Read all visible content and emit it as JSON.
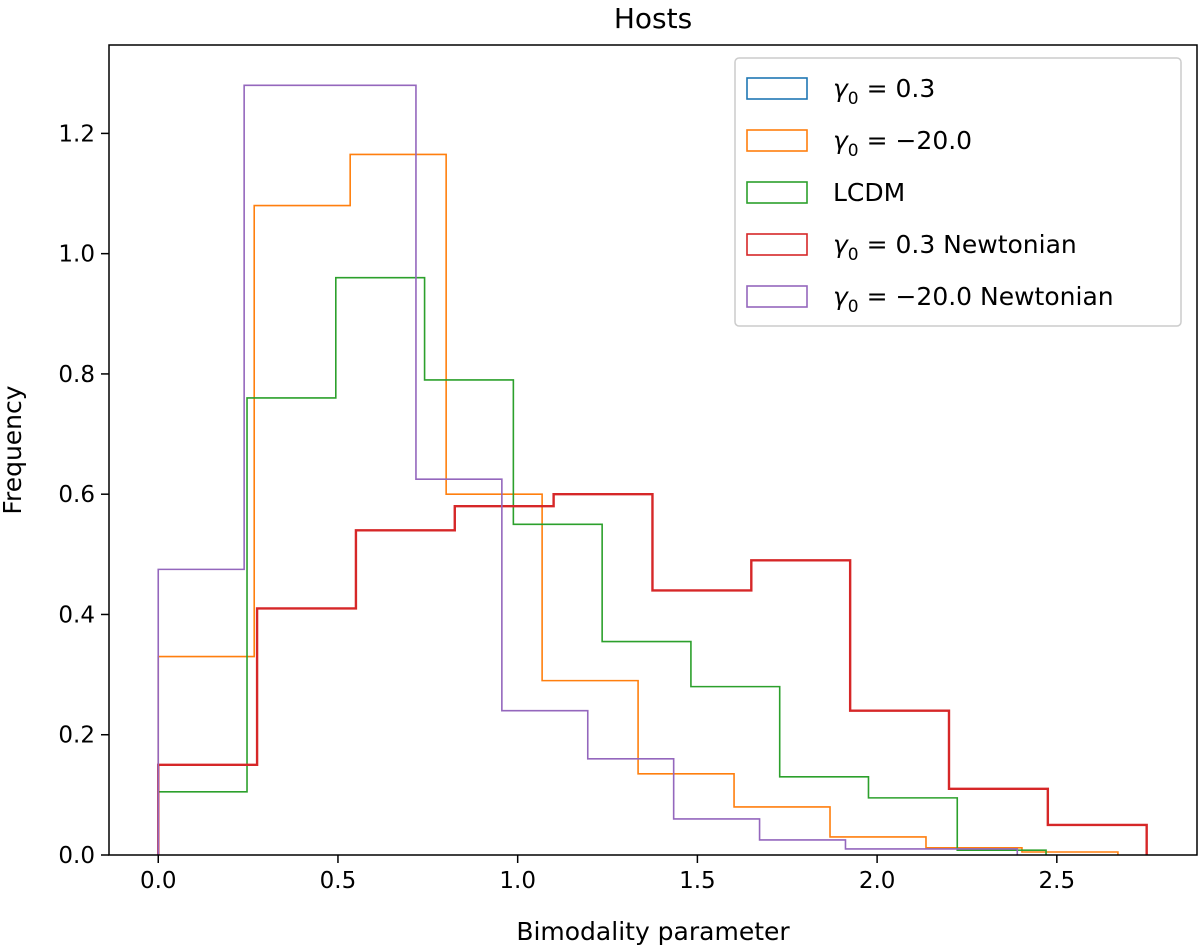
{
  "chart_data": {
    "type": "step-histogram",
    "title": "Hosts",
    "xlabel": "Bimodality parameter",
    "ylabel": "Frequency",
    "xlim": [
      -0.137,
      2.89
    ],
    "ylim": [
      0.0,
      1.347
    ],
    "xticks": [
      0.0,
      0.5,
      1.0,
      1.5,
      2.0,
      2.5
    ],
    "xtick_labels": [
      "0.0",
      "0.5",
      "1.0",
      "1.5",
      "2.0",
      "2.5"
    ],
    "yticks": [
      0.0,
      0.2,
      0.4,
      0.6,
      0.8,
      1.0,
      1.2
    ],
    "ytick_labels": [
      "0.0",
      "0.2",
      "0.4",
      "0.6",
      "0.8",
      "1.0",
      "1.2"
    ],
    "legend_position": "top-right",
    "series": [
      {
        "name": "γ₀ = 0.3",
        "color": "#1f77b4",
        "edges": [
          0.0,
          0.275,
          0.55,
          0.825,
          1.1,
          1.375,
          1.65,
          1.925,
          2.2,
          2.475,
          2.75
        ],
        "values": [
          0.15,
          0.41,
          0.54,
          0.58,
          0.6,
          0.44,
          0.49,
          0.24,
          0.11,
          0.05
        ]
      },
      {
        "name": "γ₀ = −20.0",
        "color": "#ff7f0e",
        "edges": [
          0.0,
          0.267,
          0.534,
          0.801,
          1.068,
          1.335,
          1.602,
          1.869,
          2.136,
          2.403,
          2.67
        ],
        "values": [
          0.33,
          1.08,
          1.165,
          0.6,
          0.29,
          0.135,
          0.08,
          0.03,
          0.012,
          0.005
        ]
      },
      {
        "name": "LCDM",
        "color": "#2ca02c",
        "edges": [
          0.0,
          0.247,
          0.494,
          0.741,
          0.988,
          1.235,
          1.482,
          1.729,
          1.976,
          2.223,
          2.47
        ],
        "values": [
          0.105,
          0.76,
          0.96,
          0.79,
          0.55,
          0.355,
          0.28,
          0.13,
          0.095,
          0.008
        ]
      },
      {
        "name": "γ₀ = 0.3 Newtonian",
        "color": "#d62728",
        "edges": [
          0.0,
          0.275,
          0.55,
          0.825,
          1.1,
          1.375,
          1.65,
          1.925,
          2.2,
          2.475,
          2.75
        ],
        "values": [
          0.15,
          0.41,
          0.54,
          0.58,
          0.6,
          0.44,
          0.49,
          0.24,
          0.11,
          0.05
        ]
      },
      {
        "name": "γ₀ = −20.0 Newtonian",
        "color": "#9467bd",
        "edges": [
          0.0,
          0.239,
          0.478,
          0.717,
          0.956,
          1.195,
          1.434,
          1.673,
          1.912,
          2.151,
          2.39
        ],
        "values": [
          0.475,
          1.28,
          1.28,
          0.625,
          0.24,
          0.16,
          0.06,
          0.025,
          0.01,
          0.01
        ]
      }
    ],
    "legend_labels": [
      {
        "pre": "γ",
        "sub": "0",
        "post": " = 0.3"
      },
      {
        "pre": "γ",
        "sub": "0",
        "post": " = −20.0"
      },
      {
        "pre": "LCDM",
        "sub": "",
        "post": ""
      },
      {
        "pre": "γ",
        "sub": "0",
        "post": " = 0.3 Newtonian"
      },
      {
        "pre": "γ",
        "sub": "0",
        "post": " = −20.0 Newtonian"
      }
    ]
  }
}
